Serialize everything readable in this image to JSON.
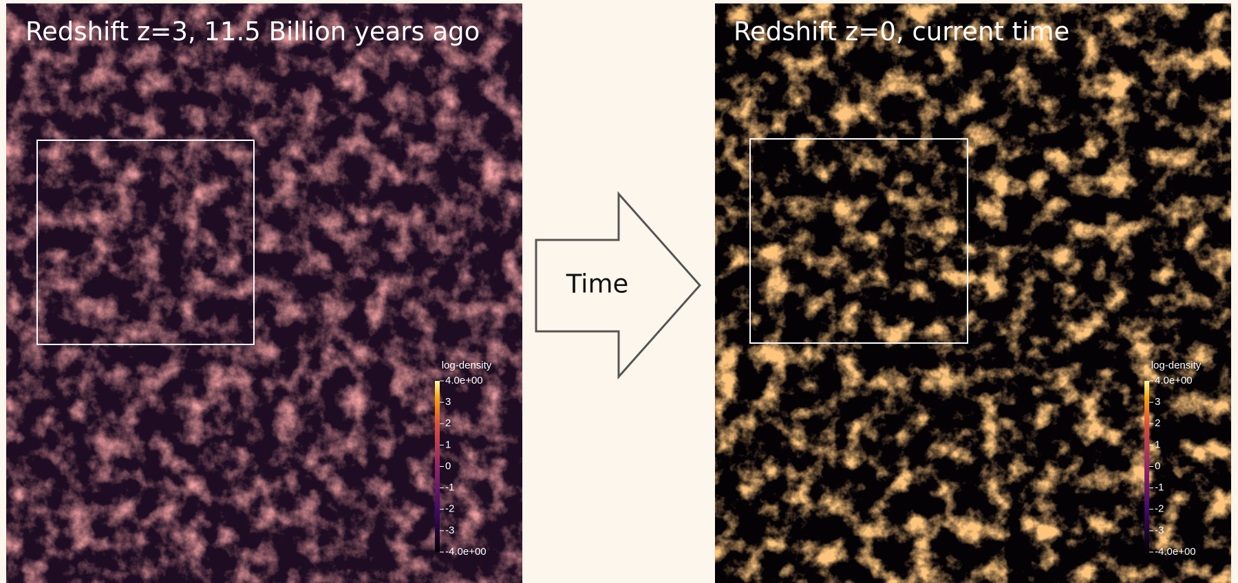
{
  "panels": [
    {
      "title": "Redshift z=3, 11.5 Billion years ago",
      "colorbar": {
        "label": "log-density",
        "lim": [
          -4,
          4
        ],
        "ticks": [
          {
            "value": 4,
            "label": "4.0e+00"
          },
          3,
          2,
          1,
          0,
          -1,
          -2,
          -3,
          {
            "value": -4,
            "label": "-4.0e+00"
          }
        ]
      }
    },
    {
      "title": "Redshift z=0, current time",
      "colorbar": {
        "label": "log-density",
        "lim": [
          -4,
          4
        ],
        "ticks": [
          {
            "value": 4,
            "label": "4.0e+00"
          },
          3,
          2,
          1,
          0,
          -1,
          -2,
          -3,
          {
            "value": -4,
            "label": "-4.0e+00"
          }
        ]
      }
    }
  ],
  "arrow": {
    "label": "Time"
  }
}
